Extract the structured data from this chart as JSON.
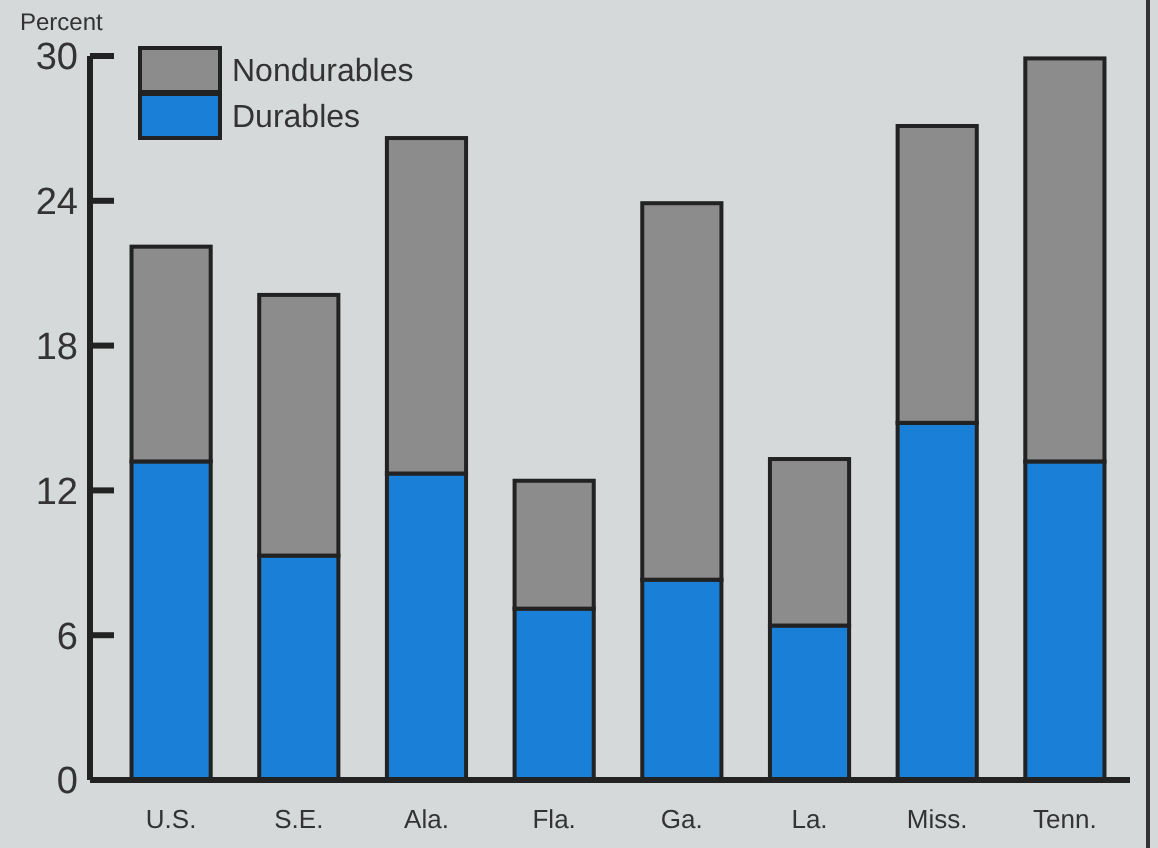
{
  "chart_data": {
    "type": "bar",
    "ylabel": "Percent",
    "stacked": true,
    "legend": "top left",
    "grid": false,
    "categories": [
      "U.S.",
      "S.E.",
      "Ala.",
      "Fla.",
      "Ga.",
      "La.",
      "Miss.",
      "Tenn."
    ],
    "series": [
      {
        "name": "Durables",
        "color": "#1a7fd6",
        "values": [
          13.2,
          9.3,
          12.7,
          7.1,
          8.3,
          6.4,
          14.8,
          13.2
        ]
      },
      {
        "name": "Nondurables",
        "color": "#8c8c8c",
        "values": [
          8.9,
          10.8,
          13.9,
          5.3,
          15.6,
          6.9,
          12.3,
          16.7
        ]
      }
    ],
    "ylim": [
      0,
      30
    ],
    "yticks": [
      0,
      6,
      12,
      18,
      24,
      30
    ]
  }
}
